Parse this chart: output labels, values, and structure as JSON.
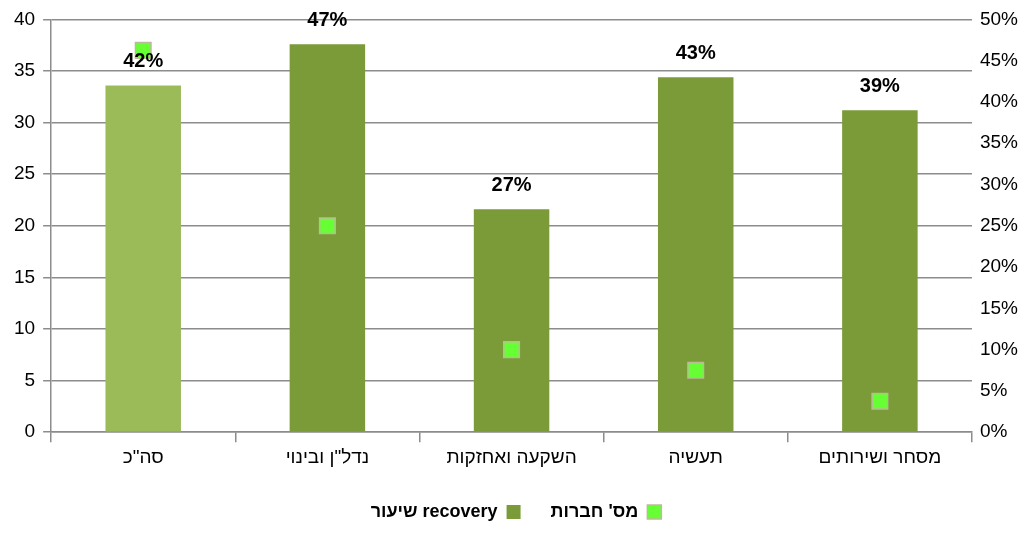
{
  "chart_data": {
    "type": "bar",
    "categories": [
      "סה\"כ",
      "נדל\"ן ובינוי",
      "השקעה ואחזקות",
      "תעשיה",
      "מסחר ושירותים"
    ],
    "series": [
      {
        "name": "מס' חברות",
        "type": "scatter",
        "color": "#66ff33",
        "values": [
          37,
          20,
          8,
          6,
          3
        ]
      },
      {
        "name": "שיעור recovery",
        "axis": "y2",
        "colors": [
          "#9bbb59",
          "#7a9b37",
          "#7a9b37",
          "#7a9b37",
          "#7a9b37"
        ],
        "values": [
          42,
          47,
          27,
          43,
          39
        ],
        "value_labels": [
          "42%",
          "47%",
          "27%",
          "43%",
          "39%"
        ]
      }
    ],
    "ylim": [
      0,
      40
    ],
    "yticks": [
      0,
      5,
      10,
      15,
      20,
      25,
      30,
      35,
      40
    ],
    "y2lim": [
      0,
      50
    ],
    "y2ticks": [
      {
        "value": 0,
        "label": "0%"
      },
      {
        "value": 5,
        "label": "5%"
      },
      {
        "value": 10,
        "label": "10%"
      },
      {
        "value": 15,
        "label": "15%"
      },
      {
        "value": 20,
        "label": "20%"
      },
      {
        "value": 25,
        "label": "25%"
      },
      {
        "value": 30,
        "label": "30%"
      },
      {
        "value": 35,
        "label": "35%"
      },
      {
        "value": 40,
        "label": "40%"
      },
      {
        "value": 45,
        "label": "45%"
      },
      {
        "value": 50,
        "label": "50%"
      }
    ],
    "grid": "y",
    "legend": "bottom",
    "marker": "square"
  }
}
